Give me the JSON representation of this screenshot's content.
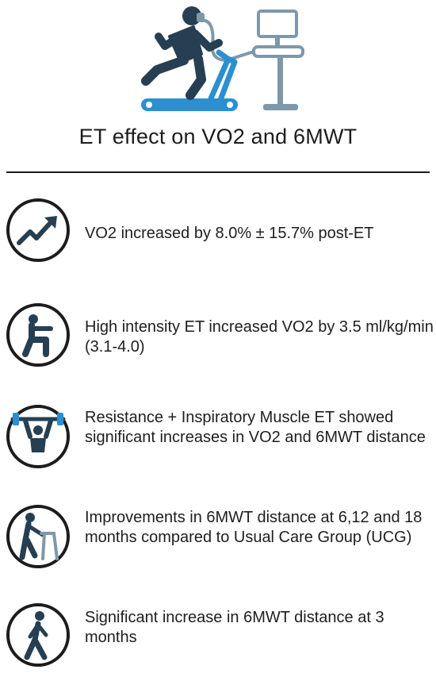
{
  "title": "ET effect on VO2 and 6MWT",
  "colors": {
    "primary": "#263f52",
    "accent": "#2b8fd1",
    "equipment": "#7e98aa",
    "text": "#1e1e1e",
    "rule": "#1c1c1c"
  },
  "hero": {
    "icon": "treadmill-vo2-test-illustration"
  },
  "items": [
    {
      "icon": "trend-up-arrow-icon",
      "text": "VO2 increased by 8.0% ± 15.7% post-ET"
    },
    {
      "icon": "squat-figure-icon",
      "text": "High intensity ET increased VO2 by 3.5 ml/kg/min (3.1-4.0)"
    },
    {
      "icon": "weightlifter-icon",
      "text": "Resistance + Inspiratory Muscle ET showed significant increases in VO2 and 6MWT distance"
    },
    {
      "icon": "walker-elderly-icon",
      "text": "Improvements in 6MWT distance at 6,12 and 18 months compared to Usual Care Group (UCG)"
    },
    {
      "icon": "walking-person-icon",
      "text": "Significant increase in 6MWT distance at 3 months"
    }
  ]
}
